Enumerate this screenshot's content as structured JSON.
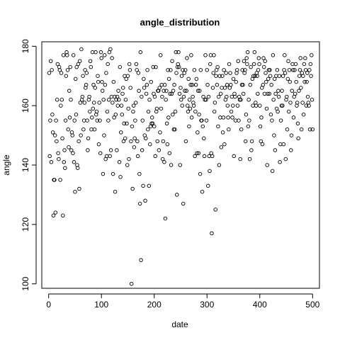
{
  "chart_data": {
    "type": "scatter",
    "title": "angle_distribution",
    "xlabel": "date",
    "ylabel": "angle",
    "xlim": [
      -13,
      513
    ],
    "ylim": [
      98.5,
      181.5
    ],
    "xticks": [
      0,
      100,
      200,
      300,
      400,
      500
    ],
    "yticks": [
      100,
      120,
      140,
      160,
      180
    ],
    "grid": false,
    "legend": "none",
    "marker": "open-circle",
    "series_y": [
      171,
      143,
      155,
      175,
      141,
      172,
      157,
      151,
      123,
      135,
      135,
      150,
      124,
      155,
      148,
      162,
      174,
      144,
      142,
      173,
      172,
      135,
      160,
      171,
      162,
      149,
      123,
      177,
      141,
      145,
      139,
      155,
      170,
      178,
      177,
      172,
      152,
      146,
      165,
      156,
      173,
      162,
      145,
      151,
      150,
      144,
      177,
      141,
      155,
      131,
      169,
      157,
      173,
      140,
      139,
      174,
      148,
      132,
      175,
      161,
      150,
      179,
      162,
      163,
      170,
      152,
      155,
      161,
      172,
      166,
      167,
      171,
      155,
      145,
      149,
      162,
      163,
      158,
      175,
      173,
      152,
      156,
      178,
      159,
      167,
      161,
      152,
      166,
      178,
      157,
      158,
      155,
      170,
      168,
      147,
      161,
      155,
      144,
      178,
      176,
      168,
      165,
      137,
      162,
      150,
      177,
      167,
      142,
      171,
      143,
      158,
      174,
      155,
      162,
      178,
      143,
      179,
      145,
      163,
      176,
      161,
      137,
      168,
      156,
      163,
      131,
      157,
      162,
      145,
      163,
      160,
      165,
      162,
      141,
      173,
      136,
      151,
      160,
      157,
      164,
      166,
      148,
      154,
      170,
      149,
      162,
      169,
      154,
      140,
      170,
      159,
      142,
      174,
      172,
      166,
      148,
      100,
      153,
      132,
      158,
      160,
      146,
      149,
      155,
      161,
      174,
      172,
      148,
      143,
      171,
      165,
      137,
      127,
      178,
      108,
      163,
      145,
      155,
      133,
      169,
      166,
      150,
      128,
      149,
      164,
      167,
      172,
      152,
      158,
      133,
      162,
      147,
      153,
      168,
      154,
      156,
      154,
      173,
      164,
      153,
      163,
      143,
      173,
      158,
      159,
      148,
      165,
      165,
      145,
      166,
      151,
      177,
      159,
      167,
      163,
      142,
      148,
      165,
      141,
      167,
      122,
      162,
      165,
      154,
      147,
      172,
      156,
      169,
      144,
      164,
      172,
      140,
      164,
      175,
      157,
      165,
      152,
      167,
      152,
      158,
      178,
      171,
      130,
      173,
      174,
      178,
      173,
      164,
      140,
      166,
      162,
      170,
      160,
      172,
      127,
      163,
      171,
      165,
      172,
      148,
      165,
      176,
      160,
      158,
      169,
      153,
      162,
      159,
      167,
      177,
      156,
      167,
      163,
      161,
      160,
      172,
      143,
      158,
      167,
      169,
      144,
      151,
      165,
      144,
      157,
      165,
      137,
      172,
      155,
      155,
      131,
      153,
      163,
      149,
      143,
      162,
      177,
      162,
      155,
      172,
      167,
      133,
      163,
      143,
      138,
      174,
      177,
      144,
      117,
      143,
      166,
      171,
      177,
      158,
      161,
      125,
      170,
      172,
      167,
      173,
      153,
      163,
      140,
      170,
      156,
      164,
      146,
      166,
      170,
      151,
      156,
      172,
      147,
      166,
      162,
      171,
      163,
      167,
      160,
      156,
      152,
      174,
      166,
      171,
      167,
      158,
      163,
      156,
      160,
      169,
      143,
      164,
      163,
      155,
      168,
      171,
      172,
      160,
      175,
      155,
      163,
      162,
      142,
      162,
      152,
      167,
      172,
      167,
      164,
      175,
      171,
      172,
      148,
      157,
      176,
      174,
      178,
      153,
      162,
      155,
      142,
      167,
      173,
      145,
      148,
      169,
      160,
      170,
      174,
      178,
      170,
      161,
      160,
      171,
      170,
      164,
      172,
      176,
      174,
      160,
      153,
      148,
      156,
      166,
      147,
      167,
      176,
      173,
      164,
      175,
      171,
      168,
      159,
      140,
      164,
      169,
      172,
      164,
      172,
      170,
      157,
      167,
      155,
      138,
      177,
      162,
      150,
      169,
      145,
      164,
      170,
      159,
      172,
      158,
      165,
      163,
      170,
      141,
      147,
      155,
      160,
      165,
      160,
      170,
      147,
      172,
      177,
      171,
      142,
      162,
      163,
      152,
      169,
      175,
      158,
      172,
      168,
      161,
      145,
      150,
      165,
      174,
      172,
      156,
      163,
      172,
      164,
      174,
      168,
      160,
      161,
      154,
      149,
      165,
      170,
      172,
      176,
      166,
      152,
      171,
      161,
      170,
      157,
      174,
      168,
      176,
      172,
      160,
      168,
      171,
      163,
      161,
      160,
      172,
      152,
      174,
      170,
      177,
      162,
      152
    ]
  }
}
